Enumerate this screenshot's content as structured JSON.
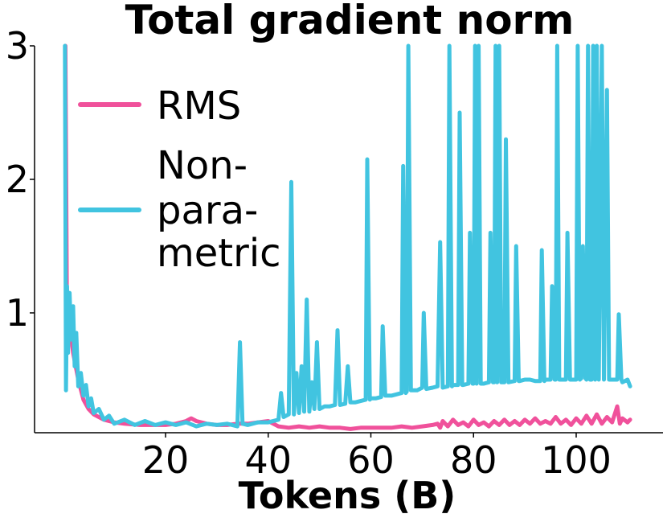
{
  "chart_data": {
    "type": "line",
    "title": "Total gradient norm",
    "xlabel": "Tokens (B)",
    "ylabel": "",
    "xlim": [
      0,
      113
    ],
    "ylim": [
      0.1,
      3
    ],
    "x_ticks": [
      20,
      40,
      60,
      80,
      100
    ],
    "x_tick_labels": [
      "20",
      "40",
      "60",
      "80",
      "100"
    ],
    "y_ticks": [
      1,
      2,
      3
    ],
    "y_tick_labels": [
      "1",
      "2",
      "3"
    ],
    "grid": false,
    "legend_position": "upper-left",
    "series": [
      {
        "name": "RMS",
        "legend_lines": [
          "RMS"
        ],
        "color": "#f0519b",
        "points": [
          [
            0.5,
            3.0
          ],
          [
            0.8,
            0.9
          ],
          [
            1.2,
            0.95
          ],
          [
            2,
            0.7
          ],
          [
            3,
            0.5
          ],
          [
            4,
            0.35
          ],
          [
            5,
            0.28
          ],
          [
            6,
            0.24
          ],
          [
            8,
            0.2
          ],
          [
            10,
            0.18
          ],
          [
            12,
            0.17
          ],
          [
            15,
            0.16
          ],
          [
            18,
            0.16
          ],
          [
            20,
            0.16
          ],
          [
            22,
            0.17
          ],
          [
            24,
            0.19
          ],
          [
            25,
            0.21
          ],
          [
            26,
            0.19
          ],
          [
            28,
            0.17
          ],
          [
            30,
            0.16
          ],
          [
            32,
            0.16
          ],
          [
            34,
            0.17
          ],
          [
            36,
            0.17
          ],
          [
            38,
            0.18
          ],
          [
            40,
            0.19
          ],
          [
            42,
            0.15
          ],
          [
            44,
            0.14
          ],
          [
            46,
            0.15
          ],
          [
            48,
            0.14
          ],
          [
            50,
            0.15
          ],
          [
            52,
            0.14
          ],
          [
            54,
            0.14
          ],
          [
            56,
            0.13
          ],
          [
            58,
            0.14
          ],
          [
            60,
            0.14
          ],
          [
            62,
            0.14
          ],
          [
            64,
            0.14
          ],
          [
            66,
            0.15
          ],
          [
            68,
            0.14
          ],
          [
            70,
            0.15
          ],
          [
            72,
            0.16
          ],
          [
            73,
            0.17
          ],
          [
            73.5,
            0.14
          ],
          [
            74,
            0.19
          ],
          [
            75,
            0.15
          ],
          [
            76,
            0.2
          ],
          [
            77,
            0.16
          ],
          [
            78,
            0.18
          ],
          [
            79,
            0.15
          ],
          [
            80,
            0.2
          ],
          [
            81,
            0.16
          ],
          [
            82,
            0.18
          ],
          [
            83,
            0.15
          ],
          [
            84,
            0.19
          ],
          [
            85,
            0.16
          ],
          [
            86,
            0.2
          ],
          [
            87,
            0.16
          ],
          [
            88,
            0.19
          ],
          [
            89,
            0.16
          ],
          [
            90,
            0.2
          ],
          [
            91,
            0.17
          ],
          [
            92,
            0.21
          ],
          [
            93,
            0.17
          ],
          [
            94,
            0.19
          ],
          [
            95,
            0.17
          ],
          [
            96,
            0.22
          ],
          [
            97,
            0.17
          ],
          [
            98,
            0.2
          ],
          [
            99,
            0.16
          ],
          [
            100,
            0.21
          ],
          [
            101,
            0.17
          ],
          [
            102,
            0.23
          ],
          [
            103,
            0.17
          ],
          [
            104,
            0.24
          ],
          [
            105,
            0.17
          ],
          [
            106,
            0.22
          ],
          [
            107,
            0.18
          ],
          [
            108,
            0.3
          ],
          [
            108.5,
            0.17
          ],
          [
            109,
            0.21
          ],
          [
            110,
            0.18
          ],
          [
            110.5,
            0.2
          ]
        ]
      },
      {
        "name": "Non-parametric",
        "legend_lines": [
          "Non-",
          "para-",
          "metric"
        ],
        "color": "#41c4e0",
        "points": [
          [
            0.4,
            3.0
          ],
          [
            0.6,
            0.42
          ],
          [
            0.8,
            1.2
          ],
          [
            1.0,
            0.7
          ],
          [
            1.3,
            1.15
          ],
          [
            1.6,
            0.8
          ],
          [
            2.0,
            1.05
          ],
          [
            2.3,
            0.6
          ],
          [
            2.6,
            0.85
          ],
          [
            3.0,
            0.45
          ],
          [
            3.5,
            0.55
          ],
          [
            4.0,
            0.38
          ],
          [
            4.5,
            0.46
          ],
          [
            5.0,
            0.3
          ],
          [
            5.5,
            0.36
          ],
          [
            6.0,
            0.25
          ],
          [
            7,
            0.28
          ],
          [
            8,
            0.2
          ],
          [
            9,
            0.23
          ],
          [
            10,
            0.17
          ],
          [
            12,
            0.2
          ],
          [
            14,
            0.16
          ],
          [
            16,
            0.19
          ],
          [
            18,
            0.16
          ],
          [
            20,
            0.18
          ],
          [
            22,
            0.16
          ],
          [
            24,
            0.18
          ],
          [
            26,
            0.15
          ],
          [
            28,
            0.17
          ],
          [
            30,
            0.16
          ],
          [
            32,
            0.17
          ],
          [
            34,
            0.15
          ],
          [
            34.5,
            0.78
          ],
          [
            35,
            0.17
          ],
          [
            36,
            0.16
          ],
          [
            38,
            0.18
          ],
          [
            40,
            0.18
          ],
          [
            42,
            0.2
          ],
          [
            42.5,
            0.4
          ],
          [
            43,
            0.22
          ],
          [
            44,
            0.24
          ],
          [
            44.5,
            1.98
          ],
          [
            45,
            0.24
          ],
          [
            45.5,
            0.55
          ],
          [
            46,
            0.25
          ],
          [
            46.5,
            0.6
          ],
          [
            47,
            0.26
          ],
          [
            47.5,
            1.1
          ],
          [
            48,
            0.26
          ],
          [
            48.5,
            0.48
          ],
          [
            49,
            0.28
          ],
          [
            49.5,
            0.78
          ],
          [
            50,
            0.28
          ],
          [
            51,
            0.3
          ],
          [
            52,
            0.3
          ],
          [
            53,
            0.31
          ],
          [
            53.5,
            0.87
          ],
          [
            54,
            0.31
          ],
          [
            55,
            0.32
          ],
          [
            55.5,
            0.6
          ],
          [
            56,
            0.33
          ],
          [
            57,
            0.33
          ],
          [
            58,
            0.34
          ],
          [
            59,
            0.35
          ],
          [
            59.3,
            2.15
          ],
          [
            59.8,
            0.35
          ],
          [
            60,
            0.36
          ],
          [
            61,
            0.36
          ],
          [
            62,
            0.37
          ],
          [
            62.3,
            0.9
          ],
          [
            62.8,
            0.38
          ],
          [
            64,
            0.38
          ],
          [
            65,
            0.39
          ],
          [
            66,
            0.4
          ],
          [
            66.3,
            2.1
          ],
          [
            66.8,
            0.4
          ],
          [
            67,
            0.41
          ],
          [
            67.3,
            3.0
          ],
          [
            67.8,
            0.42
          ],
          [
            68,
            0.42
          ],
          [
            69,
            0.42
          ],
          [
            70,
            0.44
          ],
          [
            70.3,
            1.0
          ],
          [
            70.8,
            0.43
          ],
          [
            72,
            0.44
          ],
          [
            73,
            0.45
          ],
          [
            73.5,
            1.53
          ],
          [
            74,
            0.44
          ],
          [
            75,
            0.45
          ],
          [
            75.3,
            3.0
          ],
          [
            75.8,
            0.45
          ],
          [
            76,
            0.46
          ],
          [
            77,
            0.46
          ],
          [
            77.3,
            2.5
          ],
          [
            77.8,
            0.46
          ],
          [
            78,
            0.46
          ],
          [
            79,
            0.47
          ],
          [
            79.3,
            1.6
          ],
          [
            79.8,
            0.47
          ],
          [
            80,
            0.47
          ],
          [
            80.3,
            3.0
          ],
          [
            80.6,
            0.47
          ],
          [
            81,
            3.0
          ],
          [
            81.4,
            0.47
          ],
          [
            82,
            0.47
          ],
          [
            83,
            0.48
          ],
          [
            83.3,
            1.6
          ],
          [
            83.8,
            0.48
          ],
          [
            84,
            0.48
          ],
          [
            84.3,
            3.0
          ],
          [
            84.6,
            0.48
          ],
          [
            85,
            3.0
          ],
          [
            85.4,
            0.48
          ],
          [
            86,
            0.48
          ],
          [
            86.3,
            2.3
          ],
          [
            86.8,
            0.48
          ],
          [
            88,
            0.49
          ],
          [
            88.3,
            1.5
          ],
          [
            88.8,
            0.49
          ],
          [
            89,
            0.49
          ],
          [
            90,
            0.5
          ],
          [
            91,
            0.5
          ],
          [
            92,
            0.49
          ],
          [
            93,
            0.49
          ],
          [
            93.3,
            1.47
          ],
          [
            93.8,
            0.49
          ],
          [
            94,
            0.5
          ],
          [
            95,
            0.5
          ],
          [
            95.3,
            1.2
          ],
          [
            95.8,
            0.5
          ],
          [
            96,
            0.5
          ],
          [
            96.3,
            3.0
          ],
          [
            96.7,
            0.5
          ],
          [
            97,
            0.5
          ],
          [
            98,
            0.5
          ],
          [
            98.3,
            1.6
          ],
          [
            98.8,
            0.5
          ],
          [
            99,
            0.5
          ],
          [
            100,
            0.5
          ],
          [
            100.3,
            3.0
          ],
          [
            100.7,
            0.5
          ],
          [
            101,
            0.51
          ],
          [
            101.3,
            1.5
          ],
          [
            101.8,
            0.51
          ],
          [
            102,
            0.5
          ],
          [
            102.3,
            3.0
          ],
          [
            102.7,
            0.5
          ],
          [
            103,
            0.5
          ],
          [
            103.3,
            3.0
          ],
          [
            103.7,
            0.5
          ],
          [
            104,
            3.0
          ],
          [
            104.4,
            0.5
          ],
          [
            105,
            3.0
          ],
          [
            105.4,
            0.5
          ],
          [
            106,
            2.67
          ],
          [
            106.4,
            0.5
          ],
          [
            107,
            0.5
          ],
          [
            108,
            0.5
          ],
          [
            108.3,
            0.99
          ],
          [
            108.8,
            0.5
          ],
          [
            109,
            0.48
          ],
          [
            110,
            0.5
          ],
          [
            110.5,
            0.45
          ]
        ]
      }
    ]
  }
}
